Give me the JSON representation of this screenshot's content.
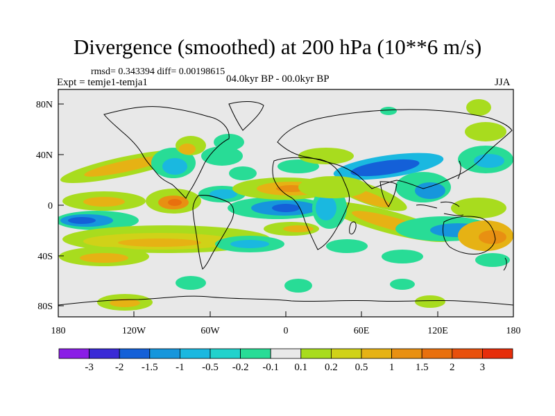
{
  "title": "Divergence (smoothed) at 200 hPa (10**6 m/s)",
  "stats": "rmsd= 0.343394 diff= 0.00198615",
  "expt": "Expt = temje1-temja1",
  "period": "04.0kyr BP - 00.0kyr BP",
  "season": "JJA",
  "lat_ticks": [
    "80N",
    "40N",
    "0",
    "40S",
    "80S"
  ],
  "lon_ticks": [
    "180",
    "120W",
    "60W",
    "0",
    "60E",
    "120E",
    "180"
  ],
  "colorbar": {
    "colors": [
      "#8a1ee6",
      "#3a2ad6",
      "#1460d8",
      "#1696dc",
      "#1ab8e0",
      "#22d2cc",
      "#28dc96",
      "#e8e8e8",
      "#a8dc1e",
      "#d0d218",
      "#e6b214",
      "#e89012",
      "#e8700e",
      "#e8500c",
      "#e62d0a"
    ],
    "labels": [
      "-3",
      "-2",
      "-1.5",
      "-1",
      "-0.5",
      "-0.2",
      "-0.1",
      "0.1",
      "0.2",
      "0.5",
      "1",
      "1.5",
      "2",
      "3"
    ]
  }
}
